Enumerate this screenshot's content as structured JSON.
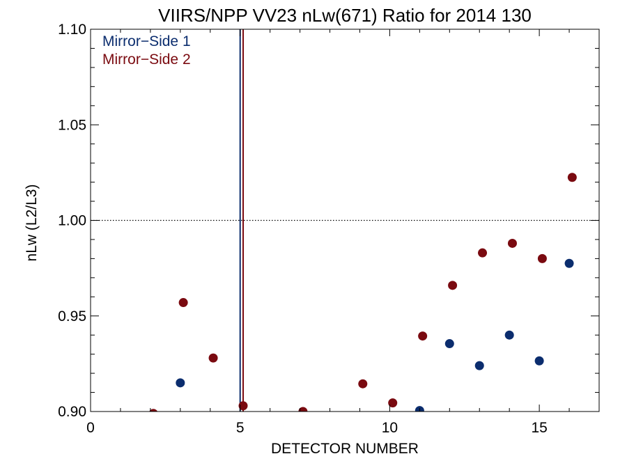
{
  "chart_data": {
    "type": "scatter",
    "title": "VIIRS/NPP VV23 nLw(671) Ratio for 2014 130",
    "xlabel": "DETECTOR NUMBER",
    "ylabel": "nLw (L2/L3)",
    "xlim": [
      0,
      17
    ],
    "ylim": [
      0.9,
      1.1
    ],
    "xticks": [
      0,
      5,
      10,
      15
    ],
    "xtick_labels": [
      "0",
      "5",
      "10",
      "15"
    ],
    "yticks": [
      0.9,
      0.95,
      1.0,
      1.05,
      1.1
    ],
    "ytick_labels": [
      "0.90",
      "0.95",
      "1.00",
      "1.05",
      "1.10"
    ],
    "grid": false,
    "legend_position": "top-left",
    "reference_line_y": 1.0,
    "series": [
      {
        "name": "Mirror−Side 1",
        "color": "#0b2d6e",
        "vline_x": 5.0,
        "x": [
          3,
          11,
          12,
          13,
          14,
          15,
          16
        ],
        "y": [
          0.915,
          0.9005,
          0.9355,
          0.924,
          0.94,
          0.9265,
          0.9775
        ]
      },
      {
        "name": "Mirror−Side 2",
        "color": "#7a0a10",
        "vline_x": 5.1,
        "x": [
          2.1,
          3.1,
          4.1,
          5.1,
          7.1,
          9.1,
          10.1,
          11.1,
          12.1,
          13.1,
          14.1,
          15.1,
          16.1
        ],
        "y": [
          0.899,
          0.957,
          0.928,
          0.903,
          0.9,
          0.9145,
          0.9045,
          0.9395,
          0.966,
          0.983,
          0.988,
          0.98,
          1.0225
        ]
      }
    ]
  }
}
